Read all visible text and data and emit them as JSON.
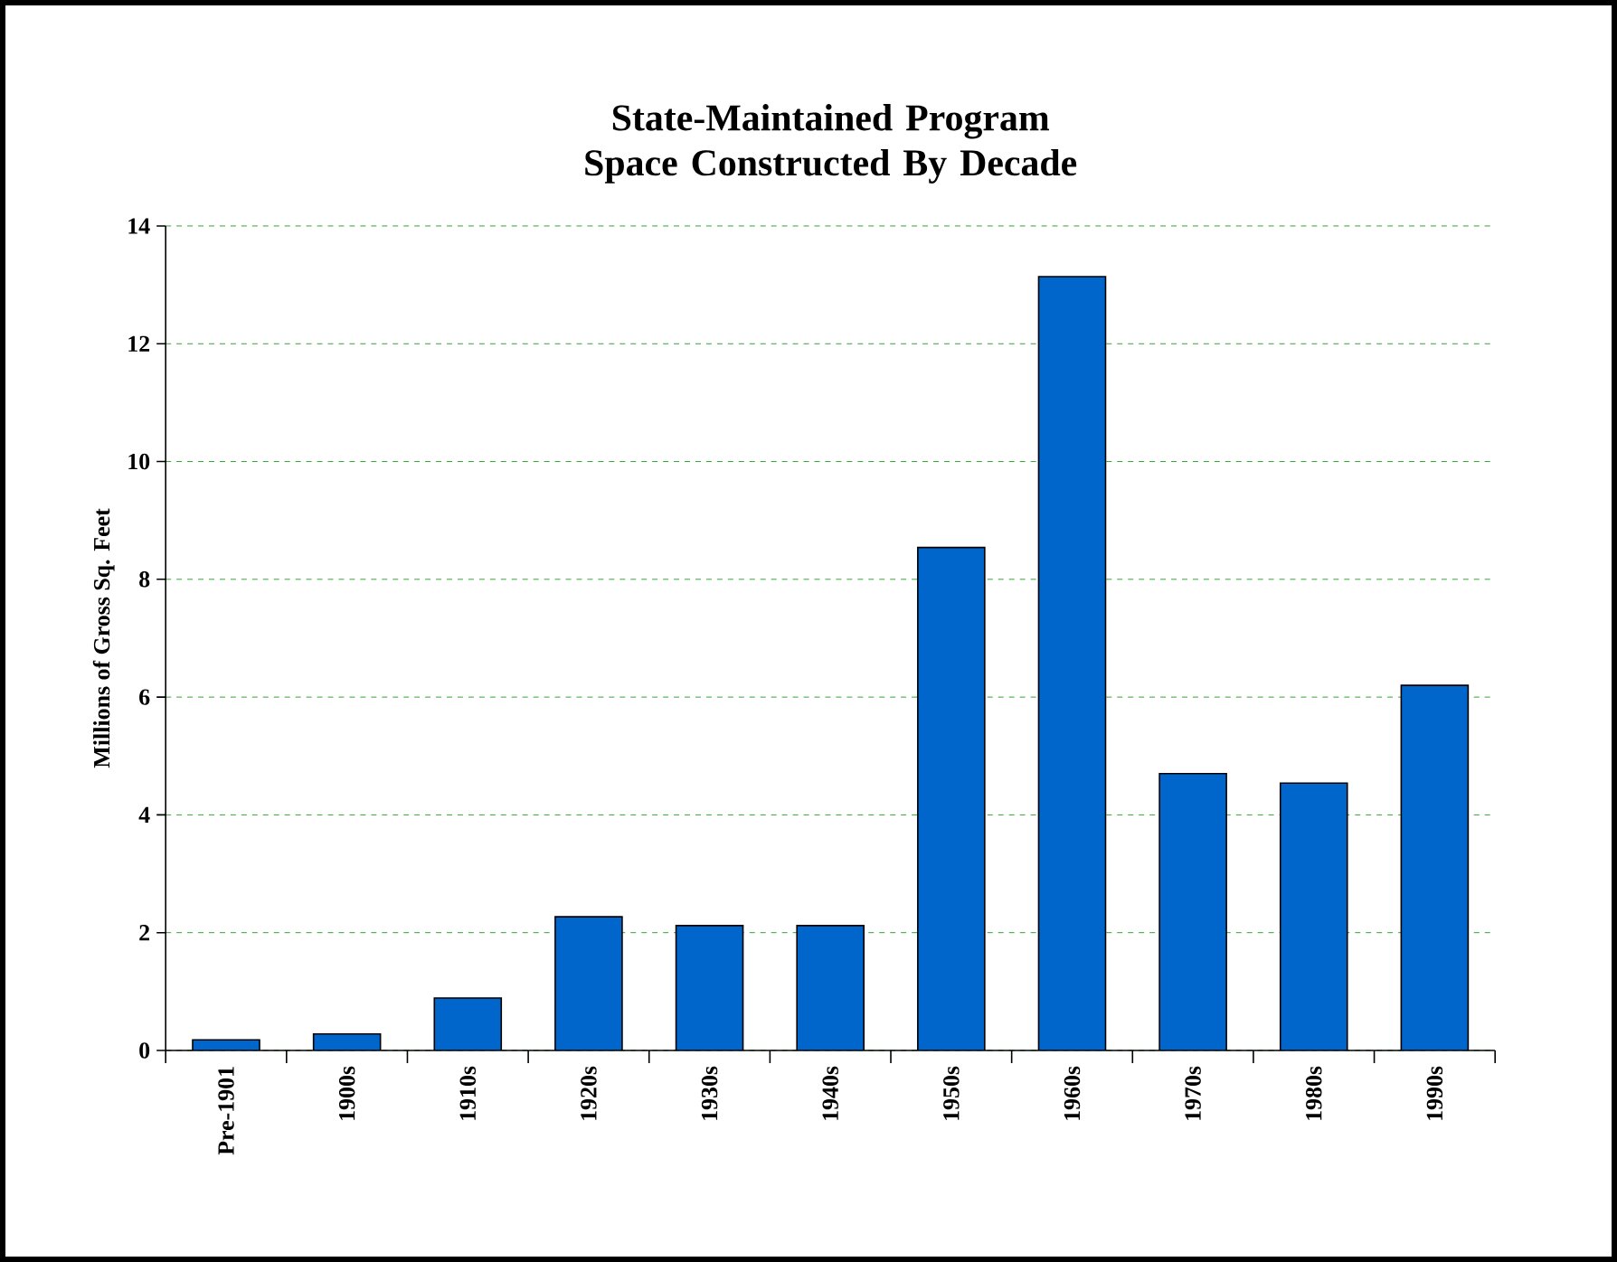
{
  "chart_data": {
    "type": "bar",
    "title": "State-Maintained Program Space Constructed By Decade",
    "ylabel": "Millions of Gross Sq. Feet",
    "categories": [
      "Pre-1901",
      "1900s",
      "1910s",
      "1920s",
      "1930s",
      "1940s",
      "1950s",
      "1960s",
      "1970s",
      "1980s",
      "1990s"
    ],
    "values": [
      0.18,
      0.28,
      0.89,
      2.27,
      2.12,
      2.12,
      8.54,
      13.14,
      4.7,
      4.54,
      6.2
    ],
    "color": "#0066cc",
    "ylim": [
      0,
      14
    ],
    "yticks": [
      0,
      2,
      4,
      6,
      8,
      10,
      12,
      14
    ],
    "grid": "y"
  }
}
